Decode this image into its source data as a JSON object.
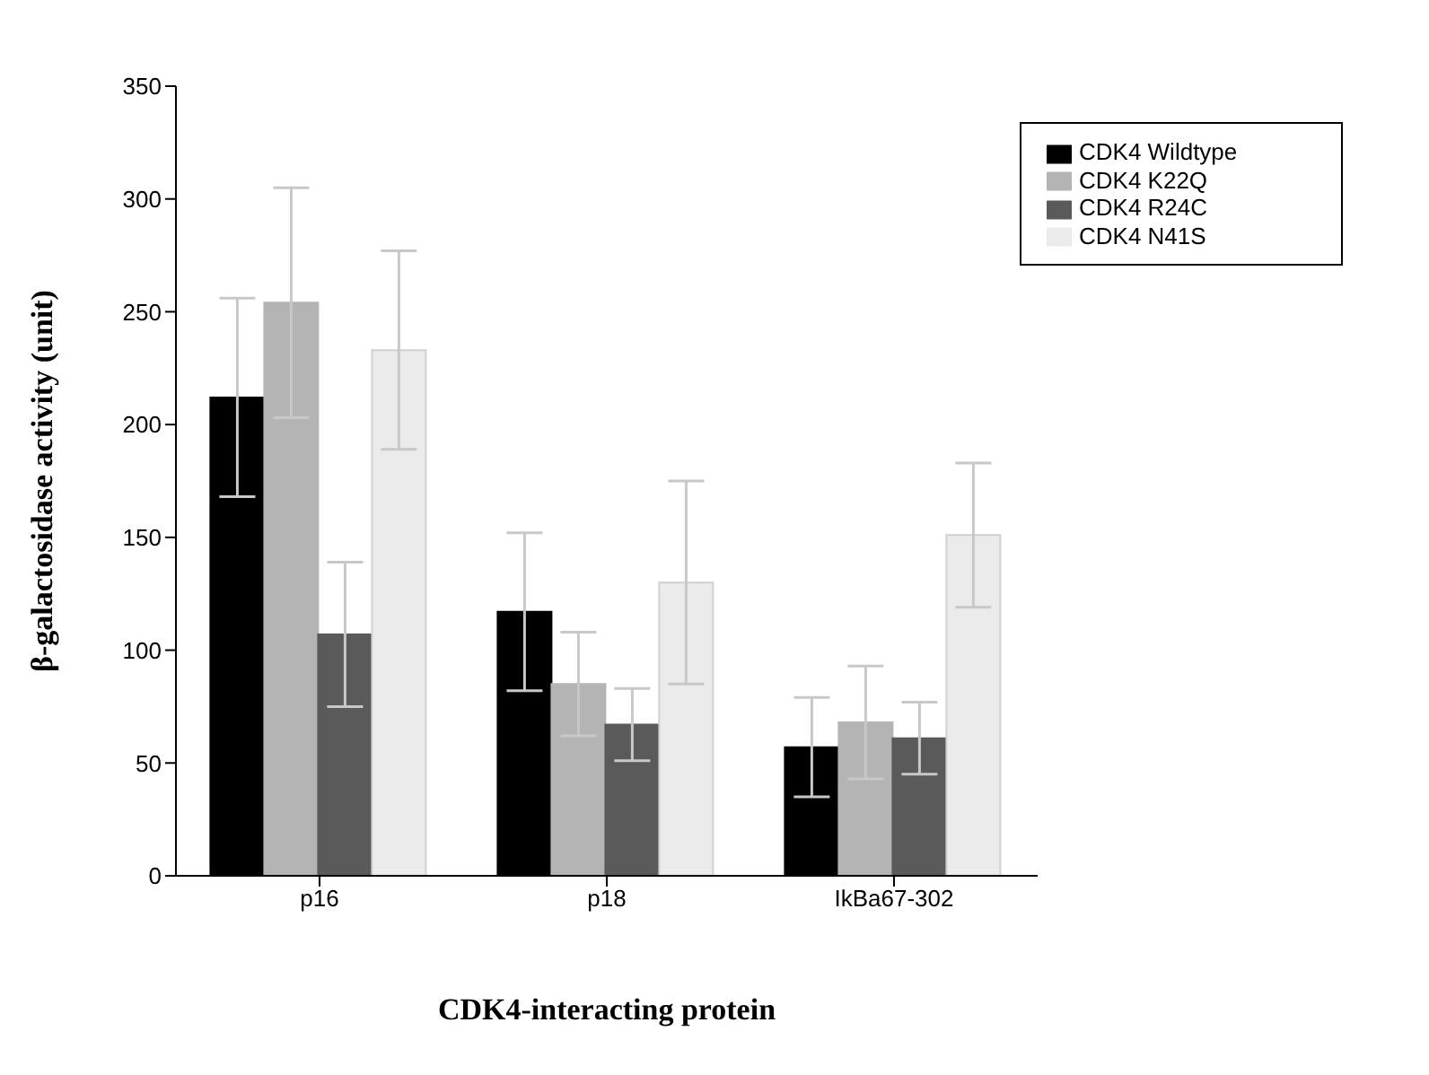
{
  "chart_data": {
    "type": "bar",
    "xlabel": "CDK4-interacting protein",
    "ylabel": "β-galactosidase activity (unit)",
    "categories": [
      "p16",
      "p18",
      "IkBa67-302"
    ],
    "series": [
      {
        "name": "CDK4 Wildtype",
        "color": "#000000",
        "values": [
          212,
          117,
          57
        ],
        "errors": [
          44,
          35,
          22
        ]
      },
      {
        "name": "CDK4 K22Q",
        "color": "#b4b4b4",
        "values": [
          254,
          85,
          68
        ],
        "errors": [
          51,
          23,
          25
        ]
      },
      {
        "name": "CDK4 R24C",
        "color": "#5a5a5a",
        "values": [
          107,
          67,
          61
        ],
        "errors": [
          32,
          16,
          16
        ]
      },
      {
        "name": "CDK4 N41S",
        "color": "#ebebeb",
        "values": [
          233,
          130,
          151
        ],
        "errors": [
          44,
          45,
          32
        ]
      }
    ],
    "ylim": [
      0,
      350
    ],
    "yticks": [
      0,
      50,
      100,
      150,
      200,
      250,
      300,
      350
    ],
    "grid": false,
    "legend": "top right"
  }
}
